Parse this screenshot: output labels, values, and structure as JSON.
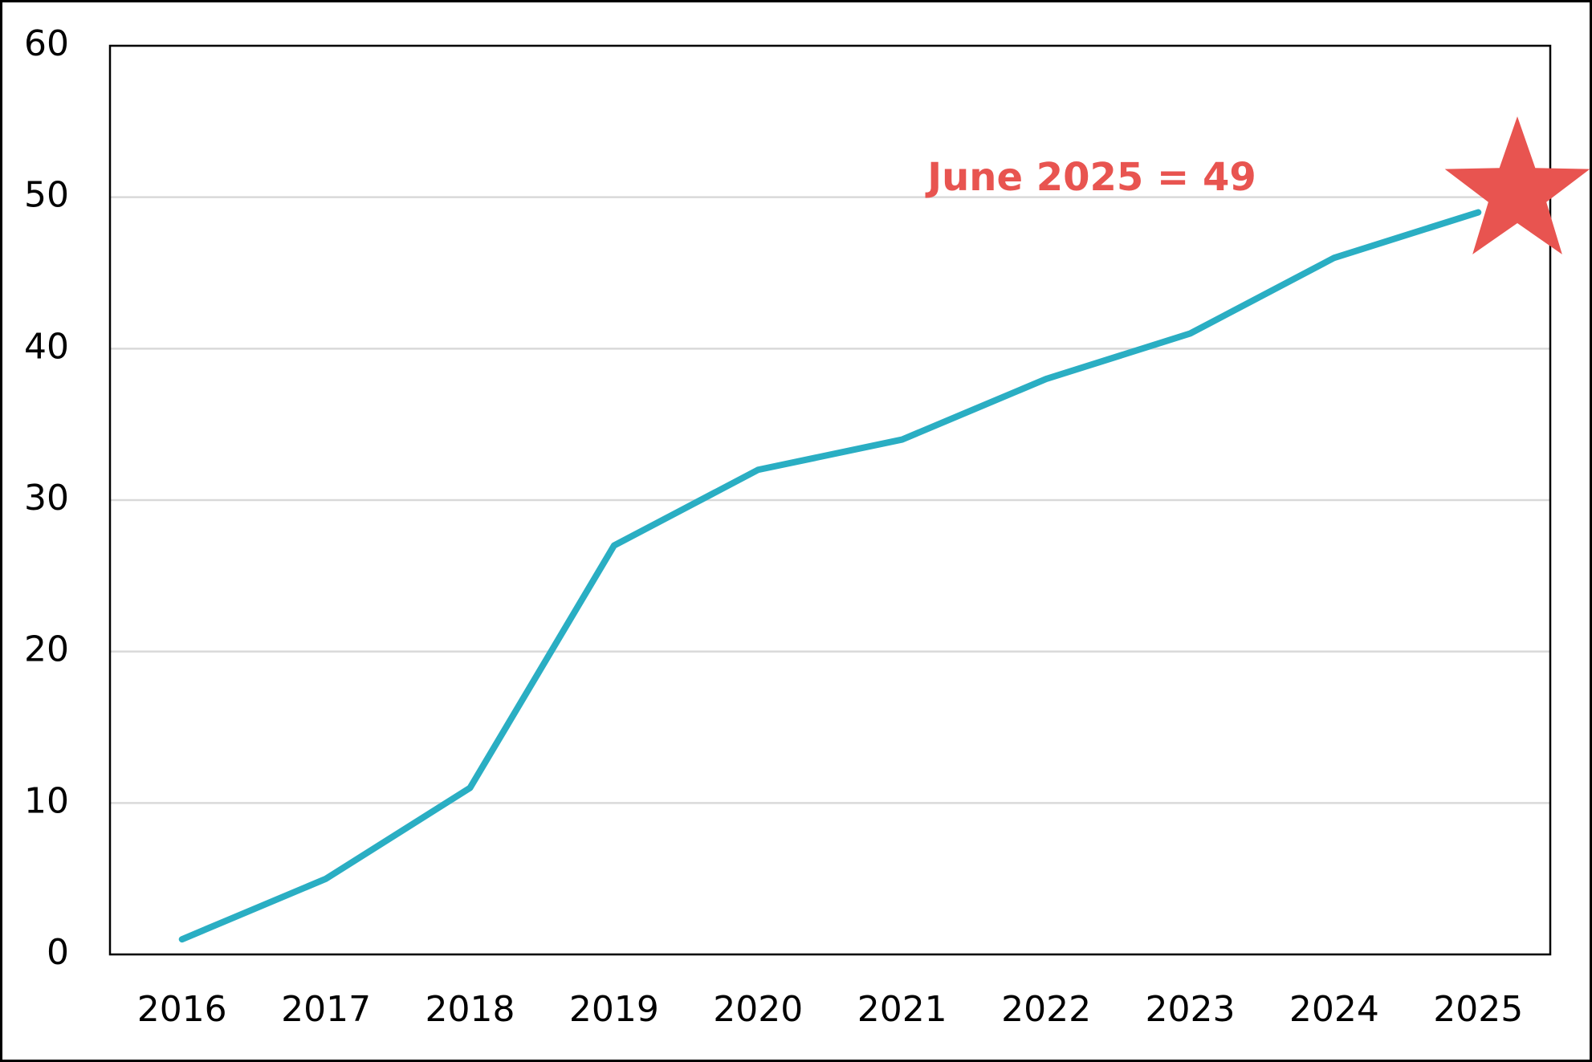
{
  "chart_data": {
    "type": "line",
    "categories": [
      "2016",
      "2017",
      "2018",
      "2019",
      "2020",
      "2021",
      "2022",
      "2023",
      "2024",
      "2025"
    ],
    "series": [
      {
        "color": "#2aaec3",
        "values": [
          1,
          5,
          11,
          27,
          32,
          34,
          38,
          41,
          46,
          49
        ]
      }
    ],
    "ylim": [
      0,
      60
    ],
    "yticks": [
      0,
      10,
      20,
      30,
      40,
      50,
      60
    ],
    "grid": true,
    "annotation": {
      "text": "June 2025 = 49",
      "color": "#e85450"
    }
  }
}
